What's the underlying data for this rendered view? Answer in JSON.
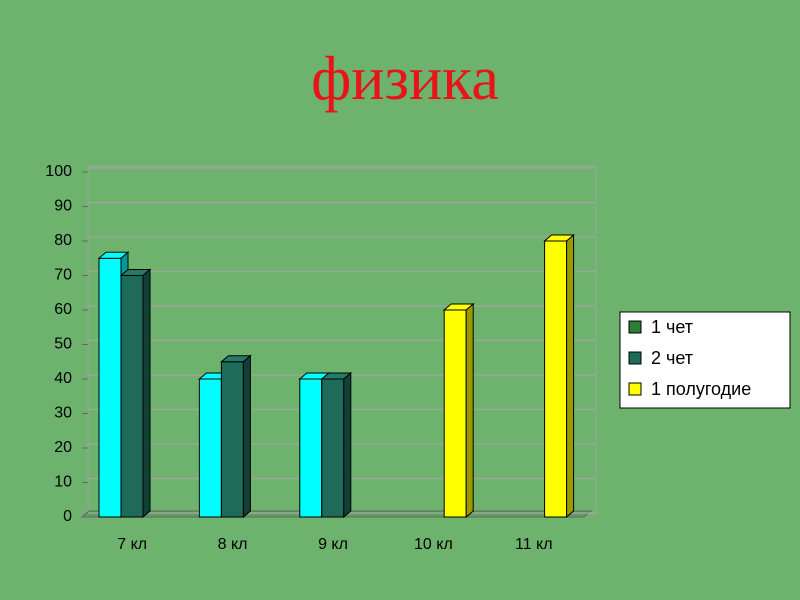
{
  "chart_data": {
    "type": "bar",
    "title": "физика",
    "categories": [
      "7 кл",
      "8 кл",
      "9 кл",
      "10 кл",
      "11 кл"
    ],
    "series": [
      {
        "name": "1 чет",
        "color": "#00ffff",
        "legend_color": "#2e7d32",
        "values": [
          75,
          40,
          40,
          null,
          null
        ]
      },
      {
        "name": "2 чет",
        "color": "#1f6b5a",
        "legend_color": "#1f6b5a",
        "values": [
          70,
          45,
          40,
          null,
          null
        ]
      },
      {
        "name": "1 полугодие",
        "color": "#ffff00",
        "legend_color": "#ffff00",
        "values": [
          null,
          null,
          null,
          60,
          80
        ]
      }
    ],
    "ylim": [
      0,
      100
    ],
    "yticks": [
      0,
      10,
      20,
      30,
      40,
      50,
      60,
      70,
      80,
      90,
      100
    ],
    "grid": true,
    "legend": "right"
  }
}
